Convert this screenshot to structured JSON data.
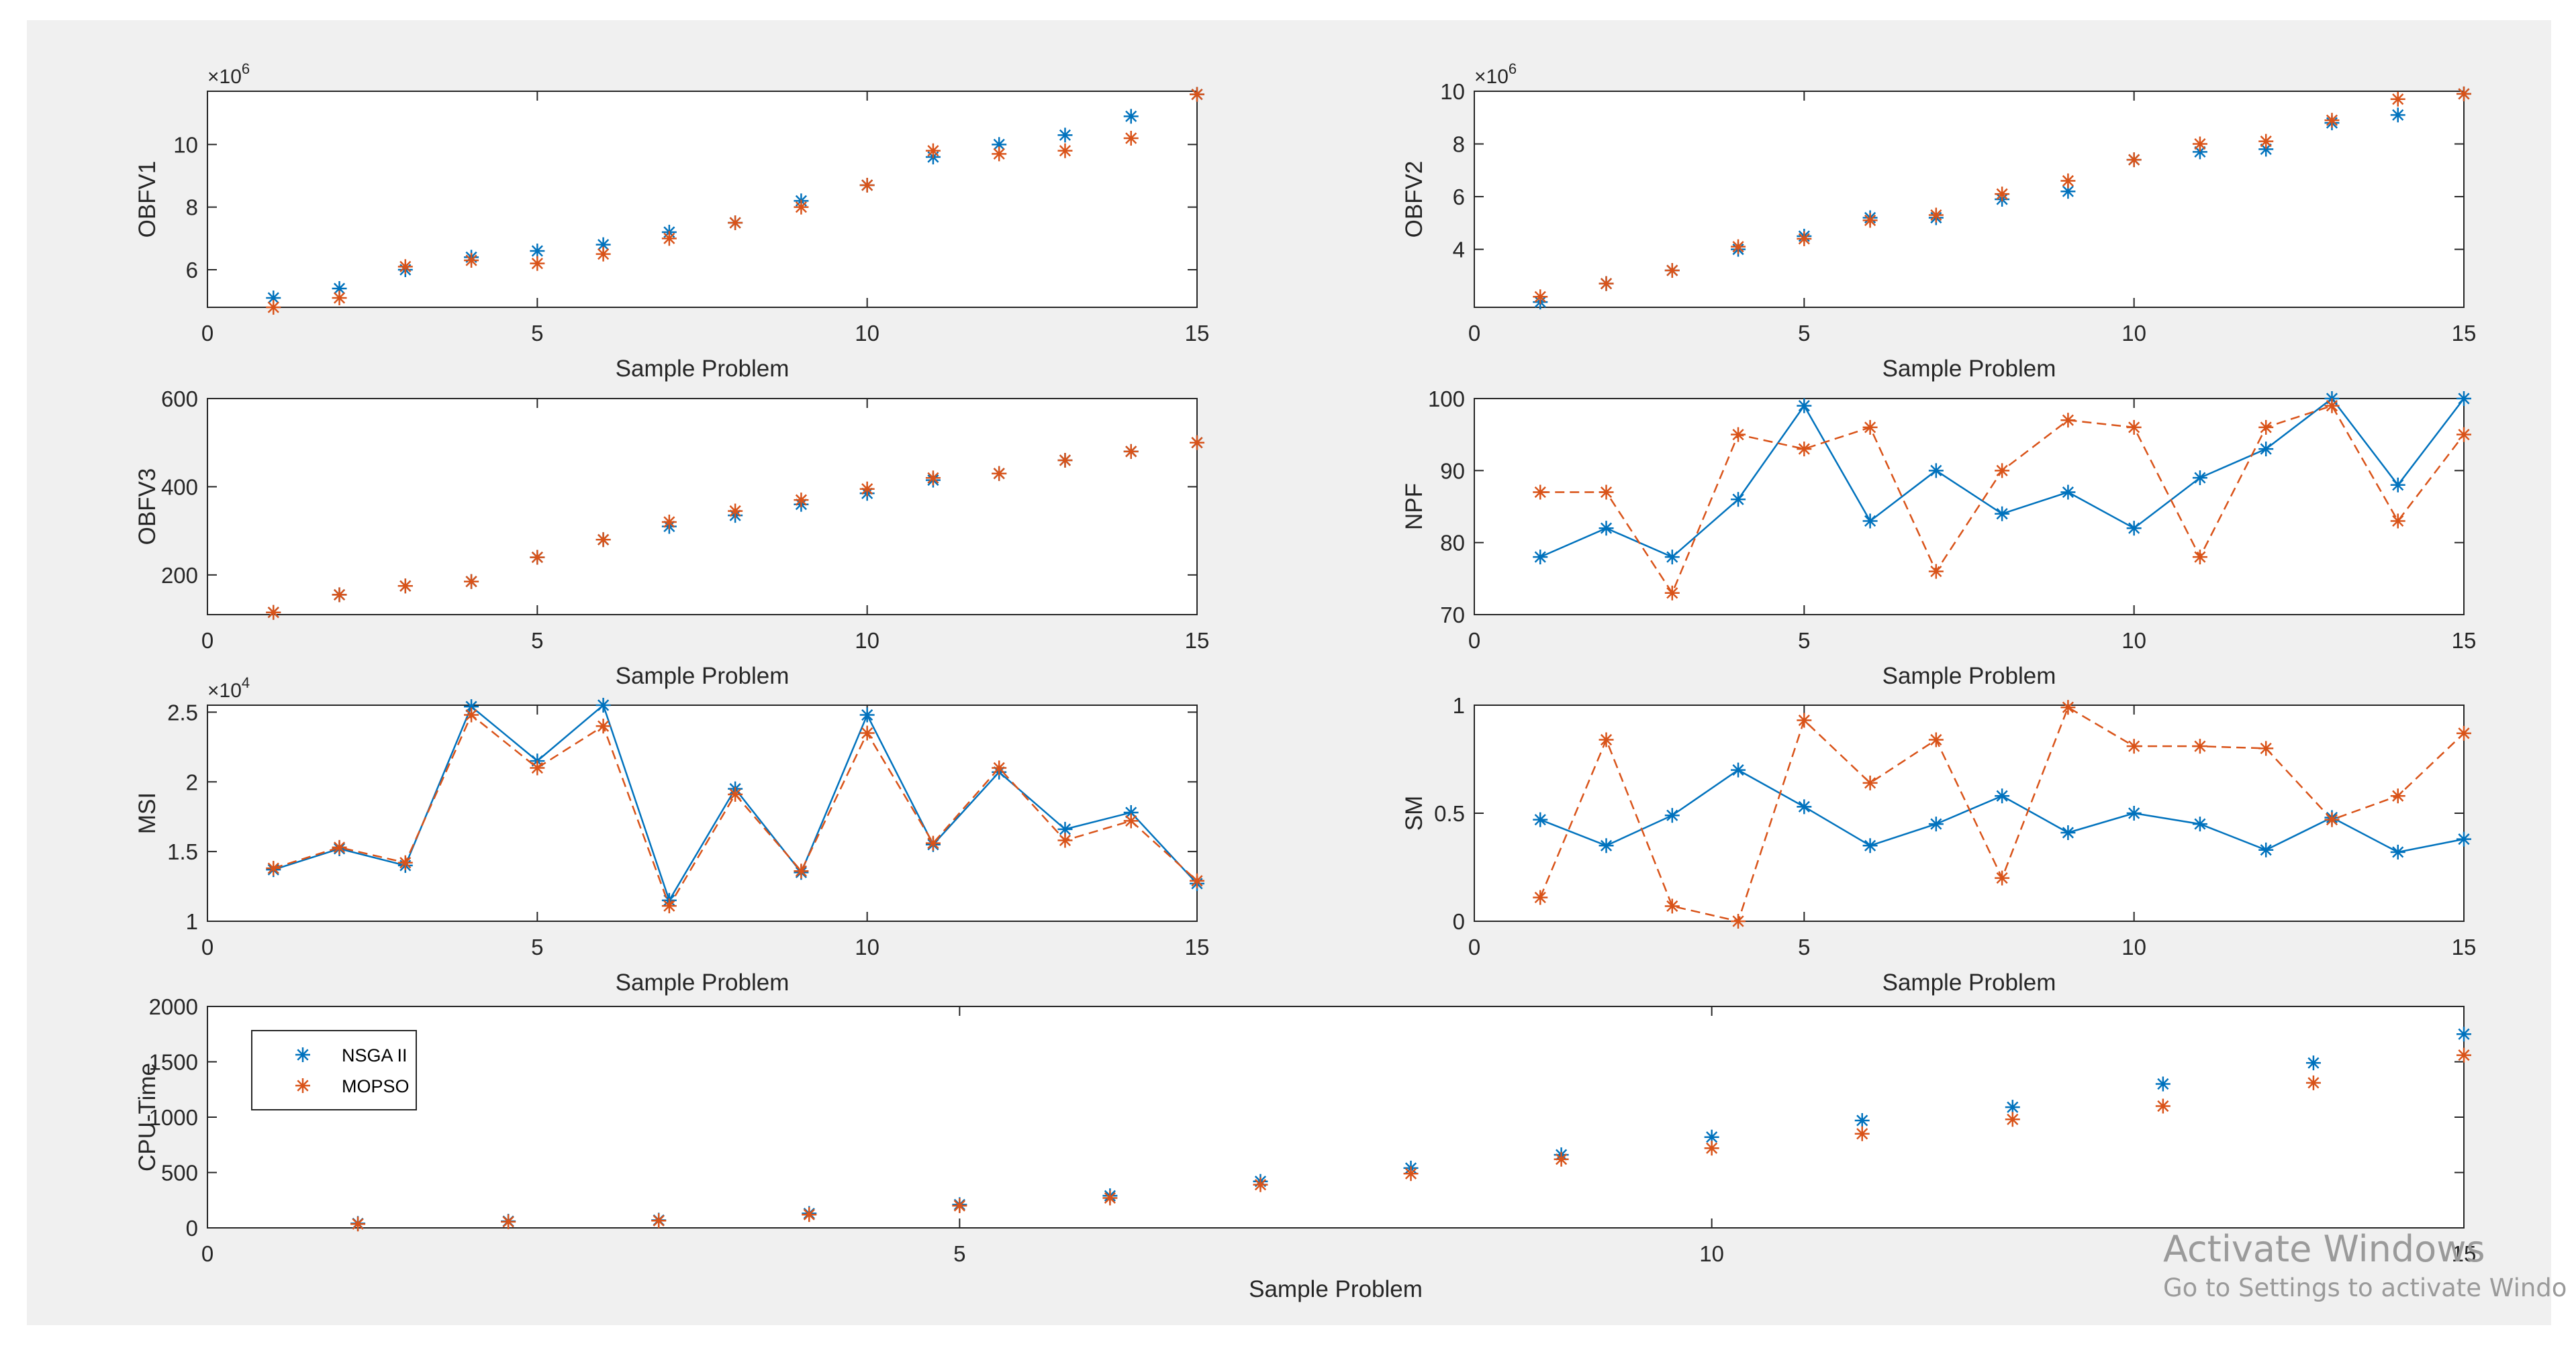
{
  "window": {
    "watermark_title": "Activate Windows",
    "watermark_subtitle": "Go to Settings to activate Windo"
  },
  "colors": {
    "nsga": "#0072BD",
    "mopso": "#D95319",
    "axis": "#262626",
    "background": "#f0f0f0"
  },
  "legend": {
    "entries": [
      "NSGA II",
      "MOPSO"
    ],
    "location": "top-left of CPU-Time plot"
  },
  "chart_data": [
    {
      "id": "obfv1",
      "type": "scatter",
      "title": "",
      "xlabel": "Sample Problem",
      "ylabel": "OBFV1",
      "exponent": "6",
      "xlim": [
        0,
        15
      ],
      "ylim": [
        4.8,
        11.7
      ],
      "xticks": [
        0,
        5,
        10,
        15
      ],
      "yticks": [
        6,
        8,
        10
      ],
      "x": [
        1,
        2,
        3,
        4,
        5,
        6,
        7,
        8,
        9,
        10,
        11,
        12,
        13,
        14,
        15
      ],
      "series": [
        {
          "name": "NSGA II",
          "style": "marker",
          "values": [
            5.1,
            5.4,
            6.0,
            6.4,
            6.6,
            6.8,
            7.2,
            7.5,
            8.2,
            8.7,
            9.6,
            10.0,
            10.3,
            10.9,
            11.6
          ]
        },
        {
          "name": "MOPSO",
          "style": "marker",
          "values": [
            4.8,
            5.1,
            6.1,
            6.3,
            6.2,
            6.5,
            7.0,
            7.5,
            8.0,
            8.7,
            9.8,
            9.7,
            9.8,
            10.2,
            11.6
          ]
        }
      ]
    },
    {
      "id": "obfv2",
      "type": "scatter",
      "title": "",
      "xlabel": "Sample Problem",
      "ylabel": "OBFV2",
      "exponent": "6",
      "xlim": [
        0,
        15
      ],
      "ylim": [
        1.8,
        10
      ],
      "xticks": [
        0,
        5,
        10,
        15
      ],
      "yticks": [
        4,
        6,
        8,
        10
      ],
      "x": [
        1,
        2,
        3,
        4,
        5,
        6,
        7,
        8,
        9,
        10,
        11,
        12,
        13,
        14,
        15
      ],
      "series": [
        {
          "name": "NSGA II",
          "style": "marker",
          "values": [
            2.0,
            2.7,
            3.2,
            4.0,
            4.5,
            5.2,
            5.2,
            5.9,
            6.2,
            7.4,
            7.7,
            7.8,
            8.8,
            9.1,
            9.9
          ]
        },
        {
          "name": "MOPSO",
          "style": "marker",
          "values": [
            2.2,
            2.7,
            3.2,
            4.1,
            4.4,
            5.1,
            5.3,
            6.1,
            6.6,
            7.4,
            8.0,
            8.1,
            8.9,
            9.7,
            9.9
          ]
        }
      ]
    },
    {
      "id": "obfv3",
      "type": "scatter",
      "title": "",
      "xlabel": "Sample Problem",
      "ylabel": "OBFV3",
      "exponent": "",
      "xlim": [
        0,
        15
      ],
      "ylim": [
        110,
        600
      ],
      "xticks": [
        0,
        5,
        10,
        15
      ],
      "yticks": [
        200,
        400,
        600
      ],
      "x": [
        1,
        2,
        3,
        4,
        5,
        6,
        7,
        8,
        9,
        10,
        11,
        12,
        13,
        14,
        15
      ],
      "series": [
        {
          "name": "NSGA II",
          "style": "marker",
          "values": [
            115,
            155,
            175,
            185,
            240,
            280,
            310,
            335,
            360,
            385,
            415,
            430,
            460,
            480,
            500
          ]
        },
        {
          "name": "MOPSO",
          "style": "marker",
          "values": [
            115,
            155,
            175,
            185,
            240,
            280,
            320,
            345,
            370,
            395,
            420,
            430,
            460,
            480,
            500
          ]
        }
      ]
    },
    {
      "id": "npf",
      "type": "line",
      "title": "",
      "xlabel": "Sample Problem",
      "ylabel": "NPF",
      "exponent": "",
      "xlim": [
        0,
        15
      ],
      "ylim": [
        70,
        100
      ],
      "xticks": [
        0,
        5,
        10,
        15
      ],
      "yticks": [
        70,
        80,
        90,
        100
      ],
      "x": [
        1,
        2,
        3,
        4,
        5,
        6,
        7,
        8,
        9,
        10,
        11,
        12,
        13,
        14,
        15
      ],
      "series": [
        {
          "name": "NSGA II",
          "style": "solid",
          "values": [
            78,
            82,
            78,
            86,
            99,
            83,
            90,
            84,
            87,
            82,
            89,
            93,
            100,
            88,
            100
          ]
        },
        {
          "name": "MOPSO",
          "style": "dashed",
          "values": [
            87,
            87,
            73,
            95,
            93,
            96,
            76,
            90,
            97,
            96,
            78,
            96,
            99,
            83,
            95
          ]
        }
      ]
    },
    {
      "id": "msi",
      "type": "line",
      "title": "",
      "xlabel": "Sample Problem",
      "ylabel": "MSI",
      "exponent": "4",
      "xlim": [
        0,
        15
      ],
      "ylim": [
        1,
        2.55
      ],
      "xticks": [
        0,
        5,
        10,
        15
      ],
      "yticks": [
        1,
        1.5,
        2,
        2.5
      ],
      "x": [
        1,
        2,
        3,
        4,
        5,
        6,
        7,
        8,
        9,
        10,
        11,
        12,
        13,
        14,
        15
      ],
      "series": [
        {
          "name": "NSGA II",
          "style": "solid",
          "values": [
            1.37,
            1.52,
            1.4,
            2.54,
            2.15,
            2.55,
            1.15,
            1.95,
            1.35,
            2.48,
            1.55,
            2.07,
            1.66,
            1.78,
            1.27
          ]
        },
        {
          "name": "MOPSO",
          "style": "dashed",
          "values": [
            1.38,
            1.53,
            1.42,
            2.48,
            2.1,
            2.4,
            1.11,
            1.91,
            1.36,
            2.35,
            1.56,
            2.1,
            1.58,
            1.72,
            1.29
          ]
        }
      ]
    },
    {
      "id": "sm",
      "type": "line",
      "title": "",
      "xlabel": "Sample Problem",
      "ylabel": "SM",
      "exponent": "",
      "xlim": [
        0,
        15
      ],
      "ylim": [
        0,
        1
      ],
      "xticks": [
        0,
        5,
        10,
        15
      ],
      "yticks": [
        0,
        0.5,
        1
      ],
      "x": [
        1,
        2,
        3,
        4,
        5,
        6,
        7,
        8,
        9,
        10,
        11,
        12,
        13,
        14,
        15
      ],
      "series": [
        {
          "name": "NSGA II",
          "style": "solid",
          "values": [
            0.47,
            0.35,
            0.49,
            0.7,
            0.53,
            0.35,
            0.45,
            0.58,
            0.41,
            0.5,
            0.45,
            0.33,
            0.48,
            0.32,
            0.38
          ]
        },
        {
          "name": "MOPSO",
          "style": "dashed",
          "values": [
            0.11,
            0.84,
            0.07,
            0.0,
            0.93,
            0.64,
            0.84,
            0.2,
            0.99,
            0.81,
            0.81,
            0.8,
            0.47,
            0.58,
            0.87
          ]
        }
      ]
    },
    {
      "id": "cpu",
      "type": "scatter",
      "title": "",
      "xlabel": "Sample Problem",
      "ylabel": "CPU-Time",
      "exponent": "",
      "xlim": [
        0,
        15
      ],
      "ylim": [
        0,
        2000
      ],
      "xticks": [
        0,
        5,
        10,
        15
      ],
      "yticks": [
        0,
        500,
        1000,
        1500,
        2000
      ],
      "x": [
        1,
        2,
        3,
        4,
        5,
        6,
        7,
        8,
        9,
        10,
        11,
        12,
        13,
        14,
        15
      ],
      "series": [
        {
          "name": "NSGA II",
          "style": "marker",
          "values": [
            40,
            60,
            70,
            130,
            210,
            290,
            420,
            540,
            660,
            820,
            970,
            1090,
            1300,
            1490,
            1750
          ]
        },
        {
          "name": "MOPSO",
          "style": "marker",
          "values": [
            35,
            55,
            65,
            120,
            200,
            270,
            390,
            490,
            620,
            720,
            850,
            980,
            1100,
            1310,
            1560
          ]
        }
      ]
    }
  ]
}
